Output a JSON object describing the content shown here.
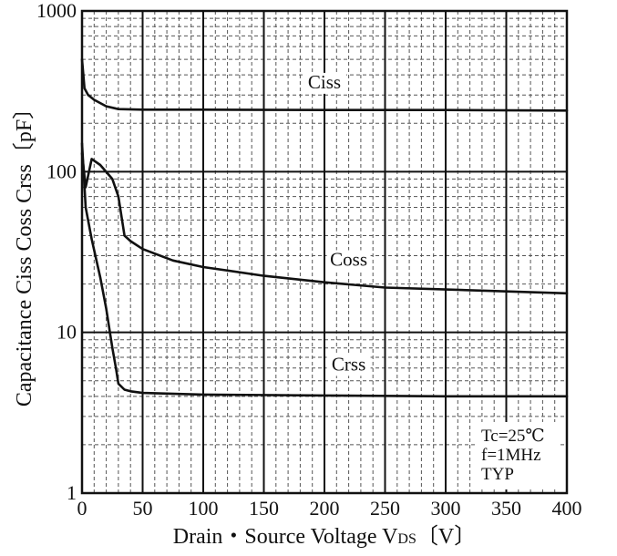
{
  "chart_data": {
    "type": "line",
    "title": "",
    "xlabel": "Drain・Source Voltage  V",
    "xlabel_subscript": "DS",
    "xlabel_unit": "〔V〕",
    "ylabel": "Capacitance  Ciss Coss Crss〔pF〕",
    "xlim": [
      0,
      400
    ],
    "ylim": [
      1,
      1000
    ],
    "y_scale": "log",
    "grid": true,
    "x_ticks": [
      "0",
      "50",
      "100",
      "150",
      "200",
      "250",
      "300",
      "350",
      "400"
    ],
    "y_ticks": [
      "1",
      "10",
      "100",
      "1000"
    ],
    "series": [
      {
        "name": "Ciss",
        "label_at": [
          200,
          330
        ],
        "points": [
          [
            0,
            500
          ],
          [
            2,
            330
          ],
          [
            5,
            300
          ],
          [
            10,
            280
          ],
          [
            20,
            255
          ],
          [
            30,
            245
          ],
          [
            50,
            243
          ],
          [
            100,
            243
          ],
          [
            200,
            242
          ],
          [
            300,
            242
          ],
          [
            400,
            240
          ]
        ]
      },
      {
        "name": "Coss",
        "label_at": [
          220,
          26
        ],
        "points": [
          [
            0,
            130
          ],
          [
            3,
            80
          ],
          [
            8,
            120
          ],
          [
            15,
            110
          ],
          [
            25,
            90
          ],
          [
            30,
            70
          ],
          [
            35,
            40
          ],
          [
            40,
            37
          ],
          [
            50,
            33
          ],
          [
            75,
            28
          ],
          [
            100,
            25.5
          ],
          [
            150,
            22.5
          ],
          [
            200,
            20.5
          ],
          [
            250,
            19
          ],
          [
            300,
            18.5
          ],
          [
            350,
            18
          ],
          [
            400,
            17.5
          ]
        ]
      },
      {
        "name": "Crss",
        "label_at": [
          220,
          5.8
        ],
        "points": [
          [
            0,
            150
          ],
          [
            3,
            60
          ],
          [
            8,
            38
          ],
          [
            15,
            22
          ],
          [
            20,
            14
          ],
          [
            25,
            8
          ],
          [
            28,
            6
          ],
          [
            30,
            4.8
          ],
          [
            35,
            4.4
          ],
          [
            40,
            4.3
          ],
          [
            50,
            4.2
          ],
          [
            100,
            4.1
          ],
          [
            200,
            4.05
          ],
          [
            300,
            4.0
          ],
          [
            400,
            4.0
          ]
        ]
      }
    ],
    "conditions": [
      "Tc=25℃",
      "f=1MHz",
      "TYP"
    ],
    "colors": {
      "line": "#111111",
      "grid_major": "#111111",
      "grid_minor": "#555555",
      "plot_bg": "#ffffff"
    }
  }
}
